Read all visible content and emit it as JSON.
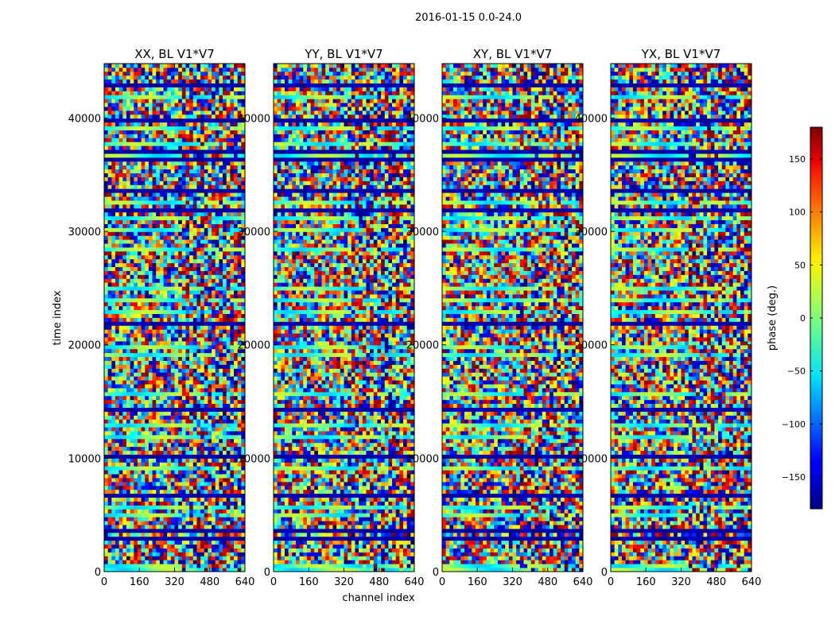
{
  "figure": {
    "suptitle": "2016-01-15 0.0-24.0"
  },
  "chart_data": {
    "type": "heatmap",
    "title": "2016-01-15 0.0-24.0",
    "xlabel": "channel index",
    "ylabel": "time index",
    "xlim": [
      0,
      640
    ],
    "ylim": [
      0,
      44800
    ],
    "x_ticks": [
      0,
      160,
      320,
      480,
      640
    ],
    "y_ticks": [
      0,
      10000,
      20000,
      30000,
      40000
    ],
    "panels": [
      {
        "title": "XX, BL V1*V7",
        "polarization": "XX"
      },
      {
        "title": "YY, BL V1*V7",
        "polarization": "YY"
      },
      {
        "title": "XY, BL V1*V7",
        "polarization": "XY"
      },
      {
        "title": "YX, BL V1*V7",
        "polarization": "YX"
      }
    ],
    "colorbar": {
      "label": "phase (deg.)",
      "range": [
        -180,
        180
      ],
      "ticks": [
        -150,
        -100,
        -50,
        0,
        50,
        100,
        150
      ],
      "colormap": "jet"
    }
  }
}
